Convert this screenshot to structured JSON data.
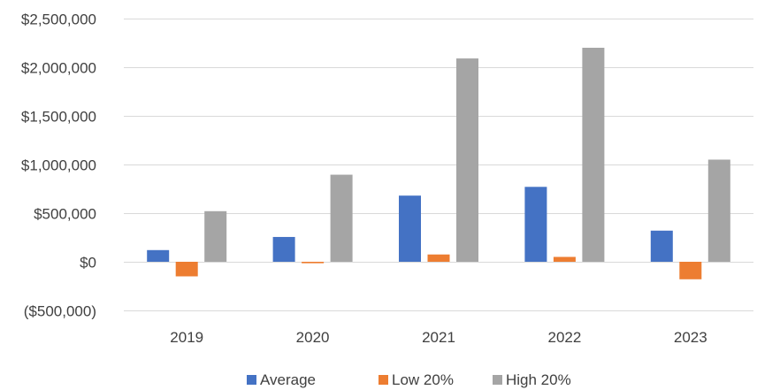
{
  "chart_data": {
    "type": "bar",
    "categories": [
      "2019",
      "2020",
      "2021",
      "2022",
      "2023"
    ],
    "series": [
      {
        "name": "Average",
        "color": "#4472C4",
        "values": [
          120000,
          255000,
          680000,
          770000,
          320000
        ]
      },
      {
        "name": "Low 20%",
        "color": "#ED7D31",
        "values": [
          -150000,
          -15000,
          75000,
          50000,
          -180000
        ]
      },
      {
        "name": "High 20%",
        "color": "#A5A5A5",
        "values": [
          520000,
          895000,
          2090000,
          2200000,
          1050000
        ]
      }
    ],
    "ylim": [
      -500000,
      2500000
    ],
    "yticks": [
      {
        "value": 2500000,
        "label": "$2,500,000"
      },
      {
        "value": 2000000,
        "label": "$2,000,000"
      },
      {
        "value": 1500000,
        "label": "$1,500,000"
      },
      {
        "value": 1000000,
        "label": "$1,000,000"
      },
      {
        "value": 500000,
        "label": "$500,000"
      },
      {
        "value": 0,
        "label": "$0"
      },
      {
        "value": -500000,
        "label": "($500,000)"
      }
    ],
    "negative_label_color": "#FF0000",
    "grid": true,
    "legend_position": "bottom",
    "title": "",
    "xlabel": "",
    "ylabel": ""
  }
}
